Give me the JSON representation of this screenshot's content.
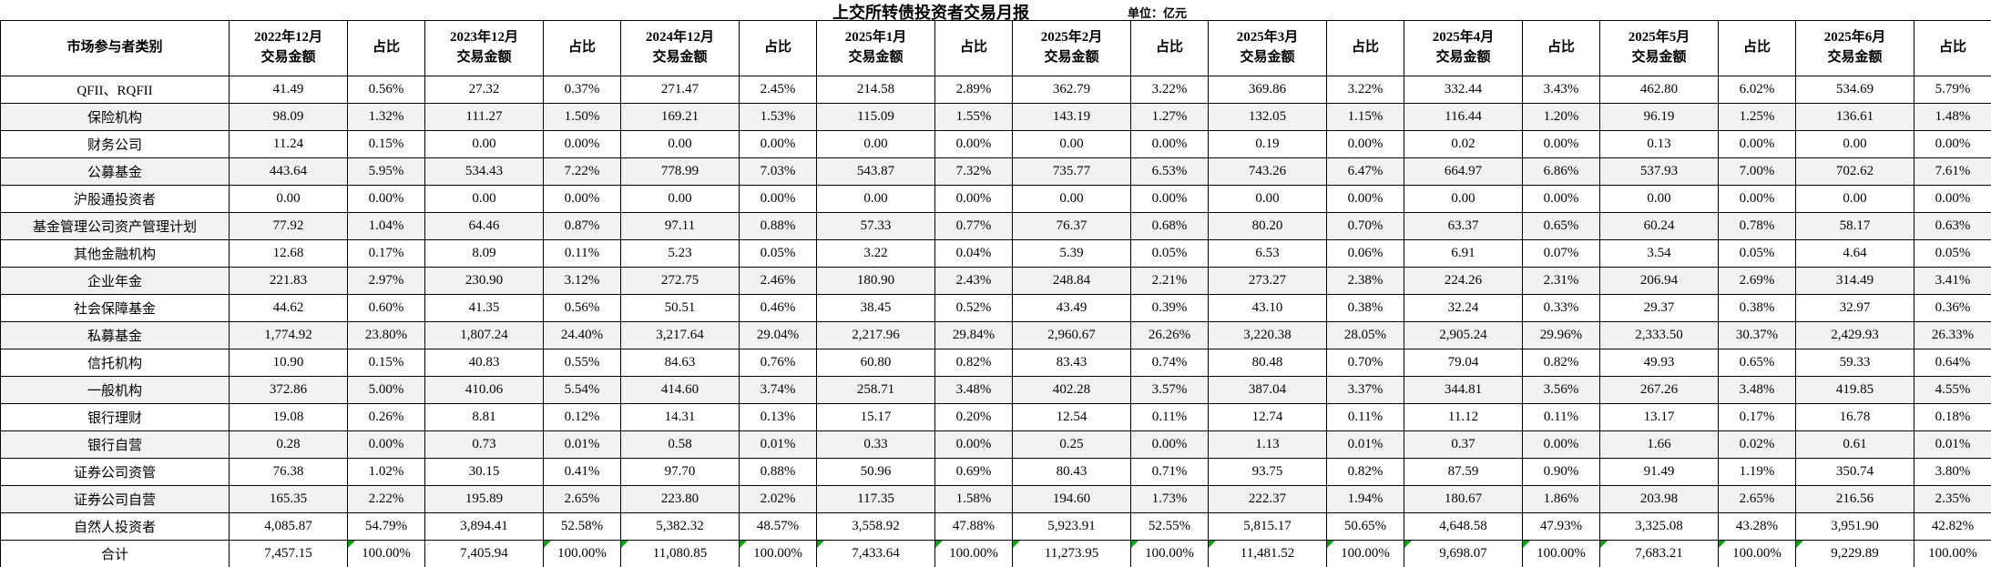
{
  "title": "上交所转债投资者交易月报",
  "unit_label": "单位：亿元",
  "colors": {
    "border": "#000000",
    "alt_row_bg": "#f2f2f2",
    "flag_green": "#0fa00f"
  },
  "table": {
    "category_header": "市场参与者类别",
    "amount_header": "交易金额",
    "pct_header": "占比",
    "periods": [
      "2022年12月",
      "2023年12月",
      "2024年12月",
      "2025年1月",
      "2025年2月",
      "2025年3月",
      "2025年4月",
      "2025年5月",
      "2025年6月"
    ],
    "rows": [
      {
        "label": "QFII、RQFII",
        "cells": [
          [
            "41.49",
            "0.56%"
          ],
          [
            "27.32",
            "0.37%"
          ],
          [
            "271.47",
            "2.45%"
          ],
          [
            "214.58",
            "2.89%"
          ],
          [
            "362.79",
            "3.22%"
          ],
          [
            "369.86",
            "3.22%"
          ],
          [
            "332.44",
            "3.43%"
          ],
          [
            "462.80",
            "6.02%"
          ],
          [
            "534.69",
            "5.79%"
          ]
        ]
      },
      {
        "label": "保险机构",
        "cells": [
          [
            "98.09",
            "1.32%"
          ],
          [
            "111.27",
            "1.50%"
          ],
          [
            "169.21",
            "1.53%"
          ],
          [
            "115.09",
            "1.55%"
          ],
          [
            "143.19",
            "1.27%"
          ],
          [
            "132.05",
            "1.15%"
          ],
          [
            "116.44",
            "1.20%"
          ],
          [
            "96.19",
            "1.25%"
          ],
          [
            "136.61",
            "1.48%"
          ]
        ]
      },
      {
        "label": "财务公司",
        "cells": [
          [
            "11.24",
            "0.15%"
          ],
          [
            "0.00",
            "0.00%"
          ],
          [
            "0.00",
            "0.00%"
          ],
          [
            "0.00",
            "0.00%"
          ],
          [
            "0.00",
            "0.00%"
          ],
          [
            "0.19",
            "0.00%"
          ],
          [
            "0.02",
            "0.00%"
          ],
          [
            "0.13",
            "0.00%"
          ],
          [
            "0.00",
            "0.00%"
          ]
        ]
      },
      {
        "label": "公募基金",
        "cells": [
          [
            "443.64",
            "5.95%"
          ],
          [
            "534.43",
            "7.22%"
          ],
          [
            "778.99",
            "7.03%"
          ],
          [
            "543.87",
            "7.32%"
          ],
          [
            "735.77",
            "6.53%"
          ],
          [
            "743.26",
            "6.47%"
          ],
          [
            "664.97",
            "6.86%"
          ],
          [
            "537.93",
            "7.00%"
          ],
          [
            "702.62",
            "7.61%"
          ]
        ]
      },
      {
        "label": "沪股通投资者",
        "cells": [
          [
            "0.00",
            "0.00%"
          ],
          [
            "0.00",
            "0.00%"
          ],
          [
            "0.00",
            "0.00%"
          ],
          [
            "0.00",
            "0.00%"
          ],
          [
            "0.00",
            "0.00%"
          ],
          [
            "0.00",
            "0.00%"
          ],
          [
            "0.00",
            "0.00%"
          ],
          [
            "0.00",
            "0.00%"
          ],
          [
            "0.00",
            "0.00%"
          ]
        ]
      },
      {
        "label": "基金管理公司资产管理计划",
        "cells": [
          [
            "77.92",
            "1.04%"
          ],
          [
            "64.46",
            "0.87%"
          ],
          [
            "97.11",
            "0.88%"
          ],
          [
            "57.33",
            "0.77%"
          ],
          [
            "76.37",
            "0.68%"
          ],
          [
            "80.20",
            "0.70%"
          ],
          [
            "63.37",
            "0.65%"
          ],
          [
            "60.24",
            "0.78%"
          ],
          [
            "58.17",
            "0.63%"
          ]
        ]
      },
      {
        "label": "其他金融机构",
        "cells": [
          [
            "12.68",
            "0.17%"
          ],
          [
            "8.09",
            "0.11%"
          ],
          [
            "5.23",
            "0.05%"
          ],
          [
            "3.22",
            "0.04%"
          ],
          [
            "5.39",
            "0.05%"
          ],
          [
            "6.53",
            "0.06%"
          ],
          [
            "6.91",
            "0.07%"
          ],
          [
            "3.54",
            "0.05%"
          ],
          [
            "4.64",
            "0.05%"
          ]
        ]
      },
      {
        "label": "企业年金",
        "cells": [
          [
            "221.83",
            "2.97%"
          ],
          [
            "230.90",
            "3.12%"
          ],
          [
            "272.75",
            "2.46%"
          ],
          [
            "180.90",
            "2.43%"
          ],
          [
            "248.84",
            "2.21%"
          ],
          [
            "273.27",
            "2.38%"
          ],
          [
            "224.26",
            "2.31%"
          ],
          [
            "206.94",
            "2.69%"
          ],
          [
            "314.49",
            "3.41%"
          ]
        ]
      },
      {
        "label": "社会保障基金",
        "cells": [
          [
            "44.62",
            "0.60%"
          ],
          [
            "41.35",
            "0.56%"
          ],
          [
            "50.51",
            "0.46%"
          ],
          [
            "38.45",
            "0.52%"
          ],
          [
            "43.49",
            "0.39%"
          ],
          [
            "43.10",
            "0.38%"
          ],
          [
            "32.24",
            "0.33%"
          ],
          [
            "29.37",
            "0.38%"
          ],
          [
            "32.97",
            "0.36%"
          ]
        ]
      },
      {
        "label": "私募基金",
        "cells": [
          [
            "1,774.92",
            "23.80%"
          ],
          [
            "1,807.24",
            "24.40%"
          ],
          [
            "3,217.64",
            "29.04%"
          ],
          [
            "2,217.96",
            "29.84%"
          ],
          [
            "2,960.67",
            "26.26%"
          ],
          [
            "3,220.38",
            "28.05%"
          ],
          [
            "2,905.24",
            "29.96%"
          ],
          [
            "2,333.50",
            "30.37%"
          ],
          [
            "2,429.93",
            "26.33%"
          ]
        ]
      },
      {
        "label": "信托机构",
        "cells": [
          [
            "10.90",
            "0.15%"
          ],
          [
            "40.83",
            "0.55%"
          ],
          [
            "84.63",
            "0.76%"
          ],
          [
            "60.80",
            "0.82%"
          ],
          [
            "83.43",
            "0.74%"
          ],
          [
            "80.48",
            "0.70%"
          ],
          [
            "79.04",
            "0.82%"
          ],
          [
            "49.93",
            "0.65%"
          ],
          [
            "59.33",
            "0.64%"
          ]
        ]
      },
      {
        "label": "一般机构",
        "cells": [
          [
            "372.86",
            "5.00%"
          ],
          [
            "410.06",
            "5.54%"
          ],
          [
            "414.60",
            "3.74%"
          ],
          [
            "258.71",
            "3.48%"
          ],
          [
            "402.28",
            "3.57%"
          ],
          [
            "387.04",
            "3.37%"
          ],
          [
            "344.81",
            "3.56%"
          ],
          [
            "267.26",
            "3.48%"
          ],
          [
            "419.85",
            "4.55%"
          ]
        ]
      },
      {
        "label": "银行理财",
        "cells": [
          [
            "19.08",
            "0.26%"
          ],
          [
            "8.81",
            "0.12%"
          ],
          [
            "14.31",
            "0.13%"
          ],
          [
            "15.17",
            "0.20%"
          ],
          [
            "12.54",
            "0.11%"
          ],
          [
            "12.74",
            "0.11%"
          ],
          [
            "11.12",
            "0.11%"
          ],
          [
            "13.17",
            "0.17%"
          ],
          [
            "16.78",
            "0.18%"
          ]
        ]
      },
      {
        "label": "银行自营",
        "cells": [
          [
            "0.28",
            "0.00%"
          ],
          [
            "0.73",
            "0.01%"
          ],
          [
            "0.58",
            "0.01%"
          ],
          [
            "0.33",
            "0.00%"
          ],
          [
            "0.25",
            "0.00%"
          ],
          [
            "1.13",
            "0.01%"
          ],
          [
            "0.37",
            "0.00%"
          ],
          [
            "1.66",
            "0.02%"
          ],
          [
            "0.61",
            "0.01%"
          ]
        ]
      },
      {
        "label": "证券公司资管",
        "cells": [
          [
            "76.38",
            "1.02%"
          ],
          [
            "30.15",
            "0.41%"
          ],
          [
            "97.70",
            "0.88%"
          ],
          [
            "50.96",
            "0.69%"
          ],
          [
            "80.43",
            "0.71%"
          ],
          [
            "93.75",
            "0.82%"
          ],
          [
            "87.59",
            "0.90%"
          ],
          [
            "91.49",
            "1.19%"
          ],
          [
            "350.74",
            "3.80%"
          ]
        ]
      },
      {
        "label": "证券公司自营",
        "cells": [
          [
            "165.35",
            "2.22%"
          ],
          [
            "195.89",
            "2.65%"
          ],
          [
            "223.80",
            "2.02%"
          ],
          [
            "117.35",
            "1.58%"
          ],
          [
            "194.60",
            "1.73%"
          ],
          [
            "222.37",
            "1.94%"
          ],
          [
            "180.67",
            "1.86%"
          ],
          [
            "203.98",
            "2.65%"
          ],
          [
            "216.56",
            "2.35%"
          ]
        ]
      },
      {
        "label": "自然人投资者",
        "cells": [
          [
            "4,085.87",
            "54.79%"
          ],
          [
            "3,894.41",
            "52.58%"
          ],
          [
            "5,382.32",
            "48.57%"
          ],
          [
            "3,558.92",
            "47.88%"
          ],
          [
            "5,923.91",
            "52.55%"
          ],
          [
            "5,815.17",
            "50.65%"
          ],
          [
            "4,648.58",
            "47.93%"
          ],
          [
            "3,325.08",
            "43.28%"
          ],
          [
            "3,951.90",
            "42.82%"
          ]
        ]
      }
    ],
    "total_row": {
      "label": "合计",
      "cells": [
        [
          "7,457.15",
          "100.00%"
        ],
        [
          "7,405.94",
          "100.00%"
        ],
        [
          "11,080.85",
          "100.00%"
        ],
        [
          "7,433.64",
          "100.00%"
        ],
        [
          "11,273.95",
          "100.00%"
        ],
        [
          "11,481.52",
          "100.00%"
        ],
        [
          "9,698.07",
          "100.00%"
        ],
        [
          "7,683.21",
          "100.00%"
        ],
        [
          "9,229.89",
          "100.00%"
        ]
      ],
      "amount_flags": [
        false,
        false,
        true,
        true,
        true,
        true,
        true,
        true,
        true
      ],
      "pct_flags": [
        true,
        true,
        true,
        true,
        true,
        true,
        true,
        true,
        false
      ]
    }
  }
}
